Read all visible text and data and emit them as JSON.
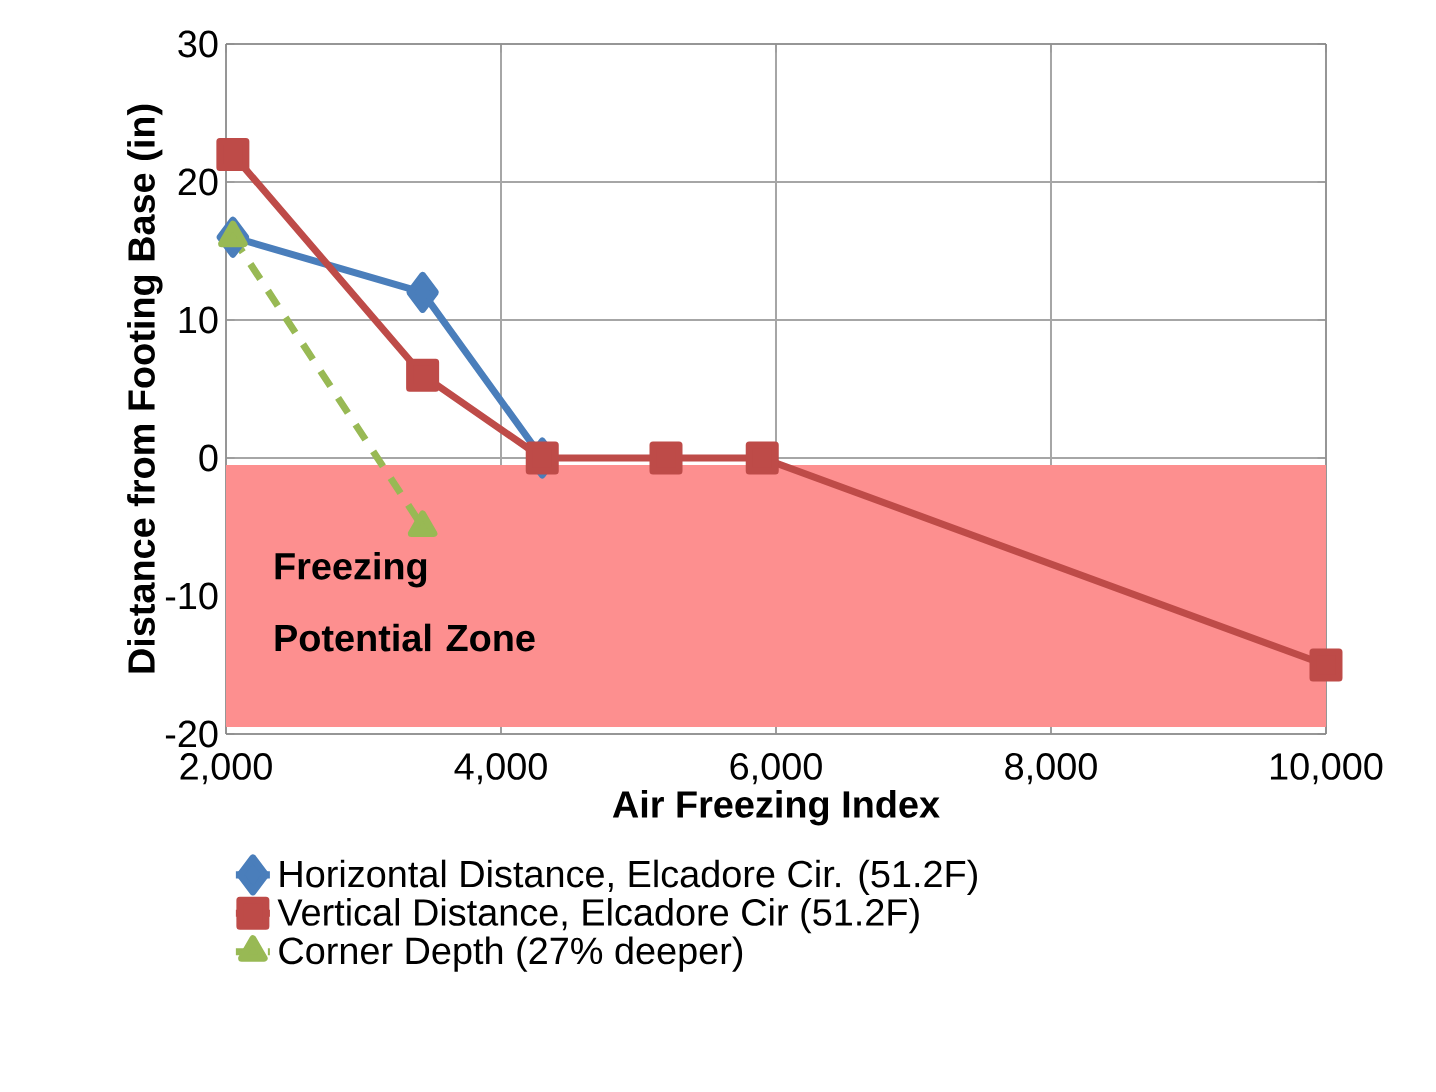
{
  "chart_data": {
    "type": "line",
    "xlabel": "Air Freezing Index",
    "ylabel": "Distance from Footing Base (in)",
    "xlim": [
      2000,
      10000
    ],
    "ylim": [
      -20,
      30
    ],
    "xticks": [
      {
        "value": 2000,
        "label": "2,000"
      },
      {
        "value": 4000,
        "label": "4,000"
      },
      {
        "value": 6000,
        "label": "6,000"
      },
      {
        "value": 8000,
        "label": "8,000"
      },
      {
        "value": 10000,
        "label": "10,000"
      }
    ],
    "yticks": [
      -20,
      -10,
      0,
      10,
      20,
      30
    ],
    "grid": true,
    "legend": "bottom",
    "series": [
      {
        "name": "Horizontal Distance, Elcadore Cir. (51.2F)",
        "color": "#4a7ebb",
        "marker": "diamond",
        "line_style": "solid",
        "x": [
          2050,
          3430,
          4300
        ],
        "values": [
          16,
          12,
          0
        ]
      },
      {
        "name": "Vertical Distance, Elcadore Cir (51.2F)",
        "color": "#be4b48",
        "marker": "square",
        "line_style": "solid",
        "x": [
          2050,
          3430,
          4300,
          5200,
          5900,
          10000
        ],
        "values": [
          22,
          6,
          0,
          0,
          0,
          -15
        ]
      },
      {
        "name": "Corner Depth (27% deeper)",
        "color": "#98b954",
        "marker": "triangle",
        "line_style": "dashed",
        "x": [
          2050,
          3430
        ],
        "values": [
          16,
          -5
        ]
      }
    ],
    "bands": [
      {
        "axis": "y",
        "from": -19.5,
        "to": -0.5,
        "label": "Freezing Potential Zone",
        "color": "#fd8f8f"
      }
    ]
  }
}
